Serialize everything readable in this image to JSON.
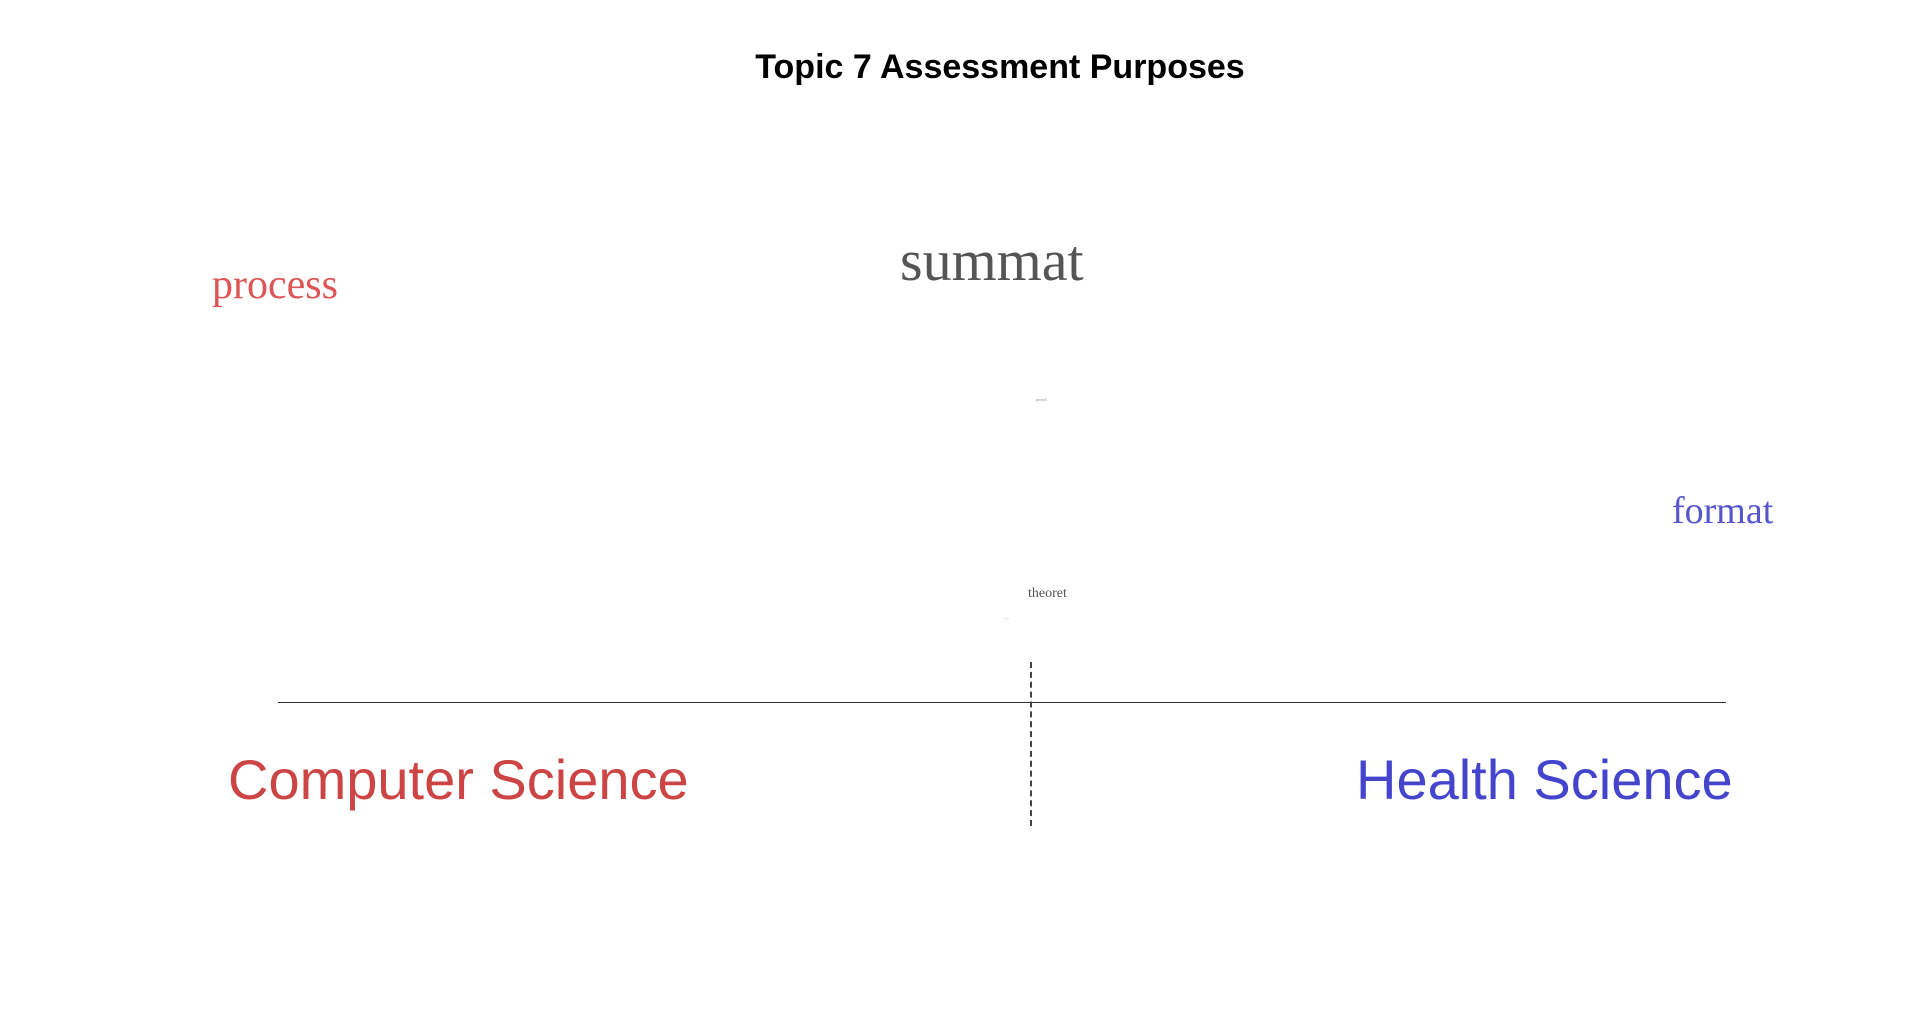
{
  "chart_data": {
    "type": "scatter",
    "title": "Topic 7 Assessment Purposes",
    "groups": [
      {
        "name": "Computer Science",
        "color": "#cc4444"
      },
      {
        "name": "Health Science",
        "color": "#4444cc"
      }
    ],
    "words": [
      {
        "text": "summat",
        "color": "#555555",
        "size_rank": 1
      },
      {
        "text": "process",
        "color": "#dd5555",
        "size_rank": 2
      },
      {
        "text": "format",
        "color": "#5555cc",
        "size_rank": 3
      },
      {
        "text": "theoret",
        "color": "#555555",
        "size_rank": 4
      },
      {
        "text": "provid",
        "color": "#888888",
        "size_rank": 5
      },
      {
        "text": "—",
        "color": "#999999",
        "size_rank": 6
      }
    ]
  }
}
